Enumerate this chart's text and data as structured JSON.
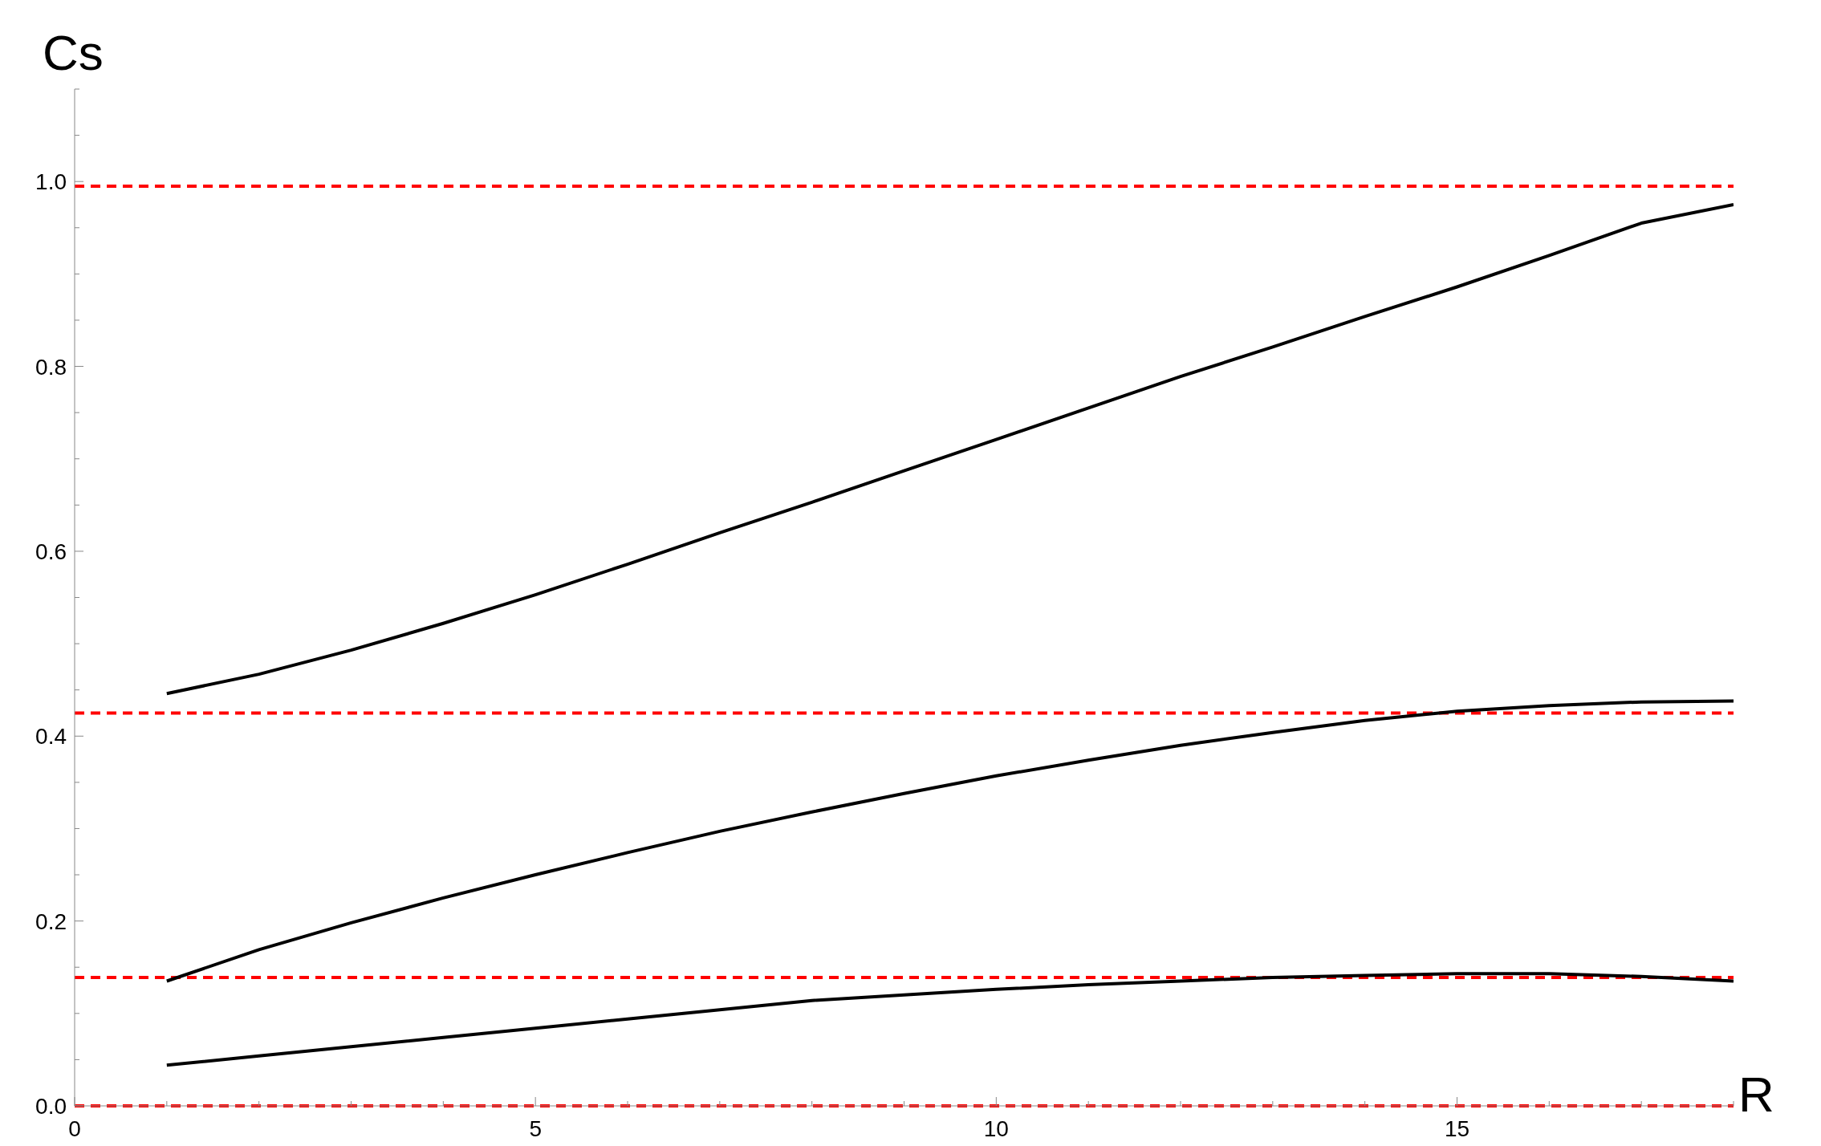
{
  "chart_data": {
    "type": "line",
    "xlabel": "R",
    "ylabel": "Cs",
    "x": [
      1,
      2,
      3,
      4,
      5,
      6,
      7,
      8,
      9,
      10,
      11,
      12,
      13,
      14,
      15,
      16,
      17,
      18
    ],
    "series": [
      {
        "color": "#000000",
        "values": [
          0.446,
          0.467,
          0.493,
          0.522,
          0.553,
          0.586,
          0.62,
          0.653,
          0.687,
          0.721,
          0.755,
          0.789,
          0.821,
          0.854,
          0.886,
          0.92,
          0.955,
          0.975
        ]
      },
      {
        "color": "#000000",
        "values": [
          0.135,
          0.169,
          0.198,
          0.225,
          0.25,
          0.274,
          0.297,
          0.318,
          0.338,
          0.357,
          0.374,
          0.39,
          0.404,
          0.417,
          0.427,
          0.433,
          0.437,
          0.438
        ]
      },
      {
        "color": "#000000",
        "values": [
          0.044,
          0.054,
          0.064,
          0.074,
          0.084,
          0.094,
          0.104,
          0.114,
          0.12,
          0.126,
          0.131,
          0.135,
          0.139,
          0.141,
          0.143,
          0.143,
          0.14,
          0.135
        ]
      }
    ],
    "xlim": [
      0,
      18
    ],
    "xticks": [
      0,
      {
        "value": 1,
        "label": null
      },
      {
        "value": 2,
        "label": null
      },
      {
        "value": 3,
        "label": null
      },
      {
        "value": 4,
        "label": null
      },
      5,
      {
        "value": 6,
        "label": null
      },
      {
        "value": 7,
        "label": null
      },
      {
        "value": 8,
        "label": null
      },
      {
        "value": 9,
        "label": null
      },
      10,
      {
        "value": 11,
        "label": null
      },
      {
        "value": 12,
        "label": null
      },
      {
        "value": 13,
        "label": null
      },
      {
        "value": 14,
        "label": null
      },
      15,
      {
        "value": 16,
        "label": null
      },
      {
        "value": 17,
        "label": null
      },
      {
        "value": 18,
        "label": null
      }
    ],
    "ylim": [
      0,
      1.1
    ],
    "yticks": [
      {
        "value": 0,
        "label": "0.0"
      },
      {
        "value": 0.05,
        "label": null
      },
      {
        "value": 0.1,
        "label": null
      },
      {
        "value": 0.15,
        "label": null
      },
      {
        "value": 0.2,
        "label": "0.2"
      },
      {
        "value": 0.25,
        "label": null
      },
      {
        "value": 0.3,
        "label": null
      },
      {
        "value": 0.35,
        "label": null
      },
      {
        "value": 0.4,
        "label": "0.4"
      },
      {
        "value": 0.45,
        "label": null
      },
      {
        "value": 0.5,
        "label": null
      },
      {
        "value": 0.55,
        "label": null
      },
      {
        "value": 0.6,
        "label": "0.6"
      },
      {
        "value": 0.65,
        "label": null
      },
      {
        "value": 0.7,
        "label": null
      },
      {
        "value": 0.75,
        "label": null
      },
      {
        "value": 0.8,
        "label": "0.8"
      },
      {
        "value": 0.85,
        "label": null
      },
      {
        "value": 0.9,
        "label": null
      },
      {
        "value": 0.95,
        "label": null
      },
      {
        "value": 1.0,
        "label": "1.0"
      },
      {
        "value": 1.05,
        "label": null
      },
      {
        "value": 1.1,
        "label": null
      }
    ],
    "ref_lines": [
      {
        "axis": "y",
        "value": 0.995,
        "color": "#ff0000",
        "line_style": "dashed"
      },
      {
        "axis": "y",
        "value": 0.425,
        "color": "#ff0000",
        "line_style": "dashed"
      },
      {
        "axis": "y",
        "value": 0.139,
        "color": "#ff0000",
        "line_style": "dashed"
      },
      {
        "axis": "y",
        "value": 0,
        "color": "#ff0000",
        "line_style": "dashed"
      }
    ],
    "marker": "none",
    "line_style": "solid",
    "grid": false,
    "legend": false
  }
}
